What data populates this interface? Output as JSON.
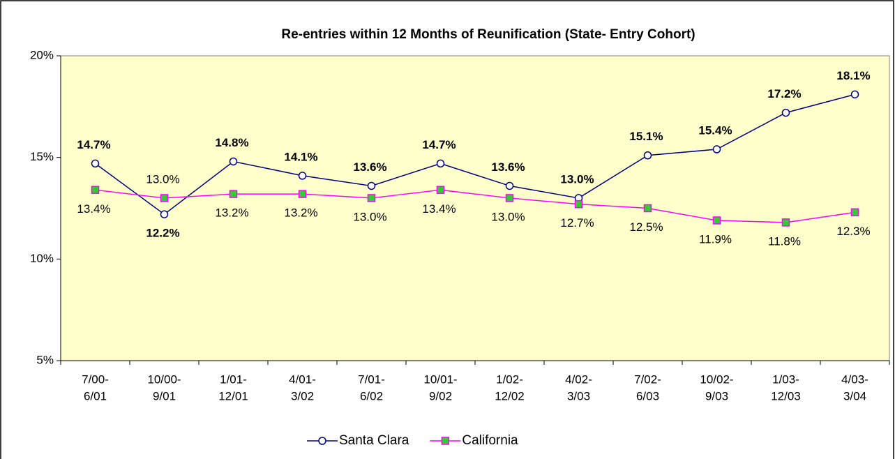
{
  "chart_data": {
    "type": "line",
    "title": "Re-entries within 12 Months of Reunification (State- Entry Cohort)",
    "categories": [
      [
        "7/00-",
        "6/01"
      ],
      [
        "10/00-",
        "9/01"
      ],
      [
        "1/01-",
        "12/01"
      ],
      [
        "4/01-",
        "3/02"
      ],
      [
        "7/01-",
        "6/02"
      ],
      [
        "10/01-",
        "9/02"
      ],
      [
        "1/02-",
        "12/02"
      ],
      [
        "4/02-",
        "3/03"
      ],
      [
        "7/02-",
        "6/03"
      ],
      [
        "10/02-",
        "9/03"
      ],
      [
        "1/03-",
        "12/03"
      ],
      [
        "4/03-",
        "3/04"
      ]
    ],
    "series": [
      {
        "name": "Santa Clara",
        "color": "#000080",
        "marker": "circle",
        "values": [
          14.7,
          12.2,
          14.8,
          14.1,
          13.6,
          14.7,
          13.6,
          13.0,
          15.1,
          15.4,
          17.2,
          18.1
        ],
        "value_labels": [
          "14.7%",
          "12.2%",
          "14.8%",
          "14.1%",
          "13.6%",
          "14.7%",
          "13.6%",
          "13.0%",
          "15.1%",
          "15.4%",
          "17.2%",
          "18.1%"
        ]
      },
      {
        "name": "California",
        "color": "#ff00ff",
        "marker": "square",
        "marker_color": "#33cc33",
        "values": [
          13.4,
          13.0,
          13.2,
          13.2,
          13.0,
          13.4,
          13.0,
          12.7,
          12.5,
          11.9,
          11.8,
          12.3
        ],
        "value_labels": [
          "13.4%",
          "13.0%",
          "13.2%",
          "13.2%",
          "13.0%",
          "13.4%",
          "13.0%",
          "12.7%",
          "12.5%",
          "11.9%",
          "11.8%",
          "12.3%"
        ]
      }
    ],
    "ylim": [
      5,
      20
    ],
    "yticks": [
      {
        "value": 5,
        "label": "5%"
      },
      {
        "value": 10,
        "label": "10%"
      },
      {
        "value": 15,
        "label": "15%"
      },
      {
        "value": 20,
        "label": "20%"
      }
    ],
    "plot_background": "#ffffcc",
    "legend": "bottom"
  }
}
